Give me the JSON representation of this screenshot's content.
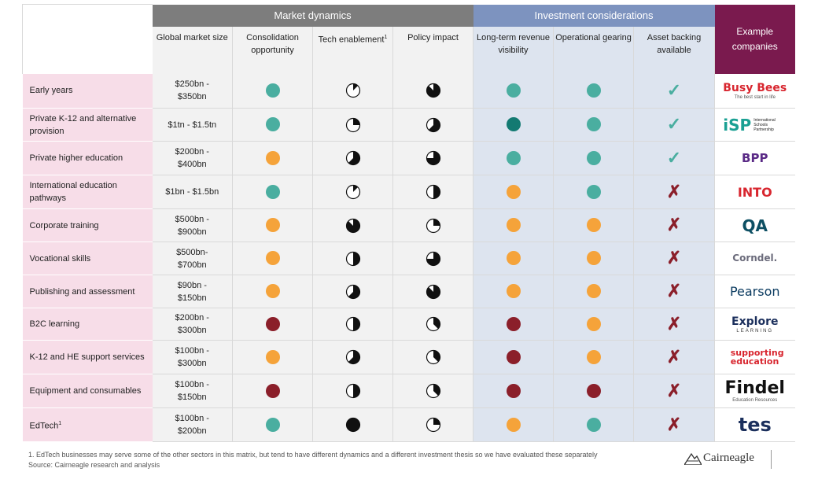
{
  "groups": {
    "market_dynamics": "Market dynamics",
    "investment_considerations": "Investment considerations",
    "example_companies": "Example companies"
  },
  "columns": {
    "global_market_size": "Global market size",
    "consolidation_opportunity": "Consolidation opportunity",
    "tech_enablement": "Tech enablement",
    "tech_enablement_sup": "1",
    "policy_impact": "Policy impact",
    "long_term_revenue_visibility": "Long-term revenue visibility",
    "operational_gearing": "Operational gearing",
    "asset_backing_available": "Asset backing available"
  },
  "colors": {
    "teal": "#4aaea0",
    "dark_teal": "#137a72",
    "orange": "#f5a33a",
    "dark_red": "#8b1f2a",
    "purple": "#7a1a4e"
  },
  "symbols": {
    "check": "✓",
    "cross": "✗"
  },
  "rows": [
    {
      "label": "Early years",
      "label_sup": "",
      "size": "$250bn - $350bn",
      "consolidation": "teal",
      "tech": 0.125,
      "policy": 0.875,
      "revenue": "teal",
      "gearing": "teal",
      "asset": "check",
      "logo": "Busy Bees",
      "logo_sub": "The best start in life"
    },
    {
      "label": "Private K-12 and alternative provision",
      "label_sup": "",
      "size": "$1tn - $1.5tn",
      "consolidation": "teal",
      "tech": 0.25,
      "policy": 0.625,
      "revenue": "dark_teal",
      "gearing": "teal",
      "asset": "check",
      "logo": "iSP",
      "logo_sub": "International Schools Partnership"
    },
    {
      "label": "Private higher education",
      "label_sup": "",
      "size": "$200bn - $400bn",
      "consolidation": "orange",
      "tech": 0.625,
      "policy": 0.75,
      "revenue": "teal",
      "gearing": "teal",
      "asset": "check",
      "logo": "BPP",
      "logo_sub": ""
    },
    {
      "label": "International education pathways",
      "label_sup": "",
      "size": "$1bn - $1.5bn",
      "consolidation": "teal",
      "tech": 0.125,
      "policy": 0.5,
      "revenue": "orange",
      "gearing": "teal",
      "asset": "cross",
      "logo": "INTO",
      "logo_sub": ""
    },
    {
      "label": "Corporate training",
      "label_sup": "",
      "size": "$500bn - $900bn",
      "consolidation": "orange",
      "tech": 0.875,
      "policy": 0.25,
      "revenue": "orange",
      "gearing": "orange",
      "asset": "cross",
      "logo": "QA",
      "logo_sub": ""
    },
    {
      "label": "Vocational skills",
      "label_sup": "",
      "size": "$500bn- $700bn",
      "consolidation": "orange",
      "tech": 0.5,
      "policy": 0.75,
      "revenue": "orange",
      "gearing": "orange",
      "asset": "cross",
      "logo": "Corndel.",
      "logo_sub": ""
    },
    {
      "label": "Publishing and assessment",
      "label_sup": "",
      "size": "$90bn - $150bn",
      "consolidation": "orange",
      "tech": 0.625,
      "policy": 0.875,
      "revenue": "orange",
      "gearing": "orange",
      "asset": "cross",
      "logo": "Pearson",
      "logo_sub": ""
    },
    {
      "label": "B2C learning",
      "label_sup": "",
      "size": "$200bn - $300bn",
      "consolidation": "dark_red",
      "tech": 0.5,
      "policy": 0.375,
      "revenue": "dark_red",
      "gearing": "orange",
      "asset": "cross",
      "logo": "Explore",
      "logo_sub": "LEARNING"
    },
    {
      "label": "K-12 and HE support services",
      "label_sup": "",
      "size": "$100bn - $300bn",
      "consolidation": "orange",
      "tech": 0.625,
      "policy": 0.375,
      "revenue": "dark_red",
      "gearing": "orange",
      "asset": "cross",
      "logo": "supporting education",
      "logo_sub": ""
    },
    {
      "label": "Equipment and consumables",
      "label_sup": "",
      "size": "$100bn - $150bn",
      "consolidation": "dark_red",
      "tech": 0.5,
      "policy": 0.375,
      "revenue": "dark_red",
      "gearing": "dark_red",
      "asset": "cross",
      "logo": "Findel",
      "logo_sub": "Education Resources"
    },
    {
      "label": "EdTech",
      "label_sup": "1",
      "size": "$100bn - $200bn",
      "consolidation": "teal",
      "tech": 1,
      "policy": 0.25,
      "revenue": "orange",
      "gearing": "teal",
      "asset": "cross",
      "logo": "tes",
      "logo_sub": ""
    }
  ],
  "footnote": "1. EdTech businesses may serve some of the other sectors in this matrix, but tend to have different dynamics and a different investment thesis so we have evaluated these separately",
  "source": "Source: Cairneagle research and analysis",
  "brand": "Cairneagle"
}
